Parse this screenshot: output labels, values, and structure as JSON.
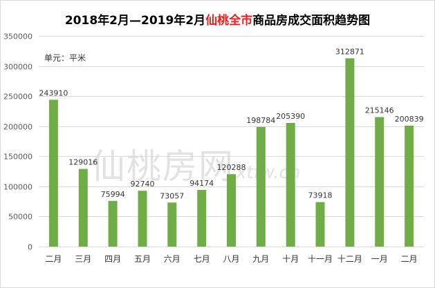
{
  "title": {
    "part1": "2018年2月—2019年2月",
    "highlight": "仙桃全市",
    "part2": "商品房成交面积趋势图"
  },
  "unit_label": "单元：平米",
  "watermark": {
    "cn": "仙桃房网",
    "en": "xtfw.cn"
  },
  "colors": {
    "bar": "#70ad47",
    "grid": "#d9d9d9",
    "title_highlight": "#e8201d"
  },
  "chart_data": {
    "type": "bar",
    "title": "2018年2月—2019年2月仙桃全市商品房成交面积趋势图",
    "ylabel": "单元：平米",
    "ylim": [
      0,
      350000
    ],
    "yticks": [
      0,
      50000,
      100000,
      150000,
      200000,
      250000,
      300000,
      350000
    ],
    "grid": true,
    "categories": [
      "二月",
      "三月",
      "四月",
      "五月",
      "六月",
      "七月",
      "八月",
      "九月",
      "十月",
      "十一月",
      "十二月",
      "一月",
      "二月"
    ],
    "values": [
      243910,
      129016,
      75994,
      92740,
      73057,
      94174,
      120288,
      198784,
      205390,
      73918,
      312871,
      215146,
      200839
    ]
  }
}
